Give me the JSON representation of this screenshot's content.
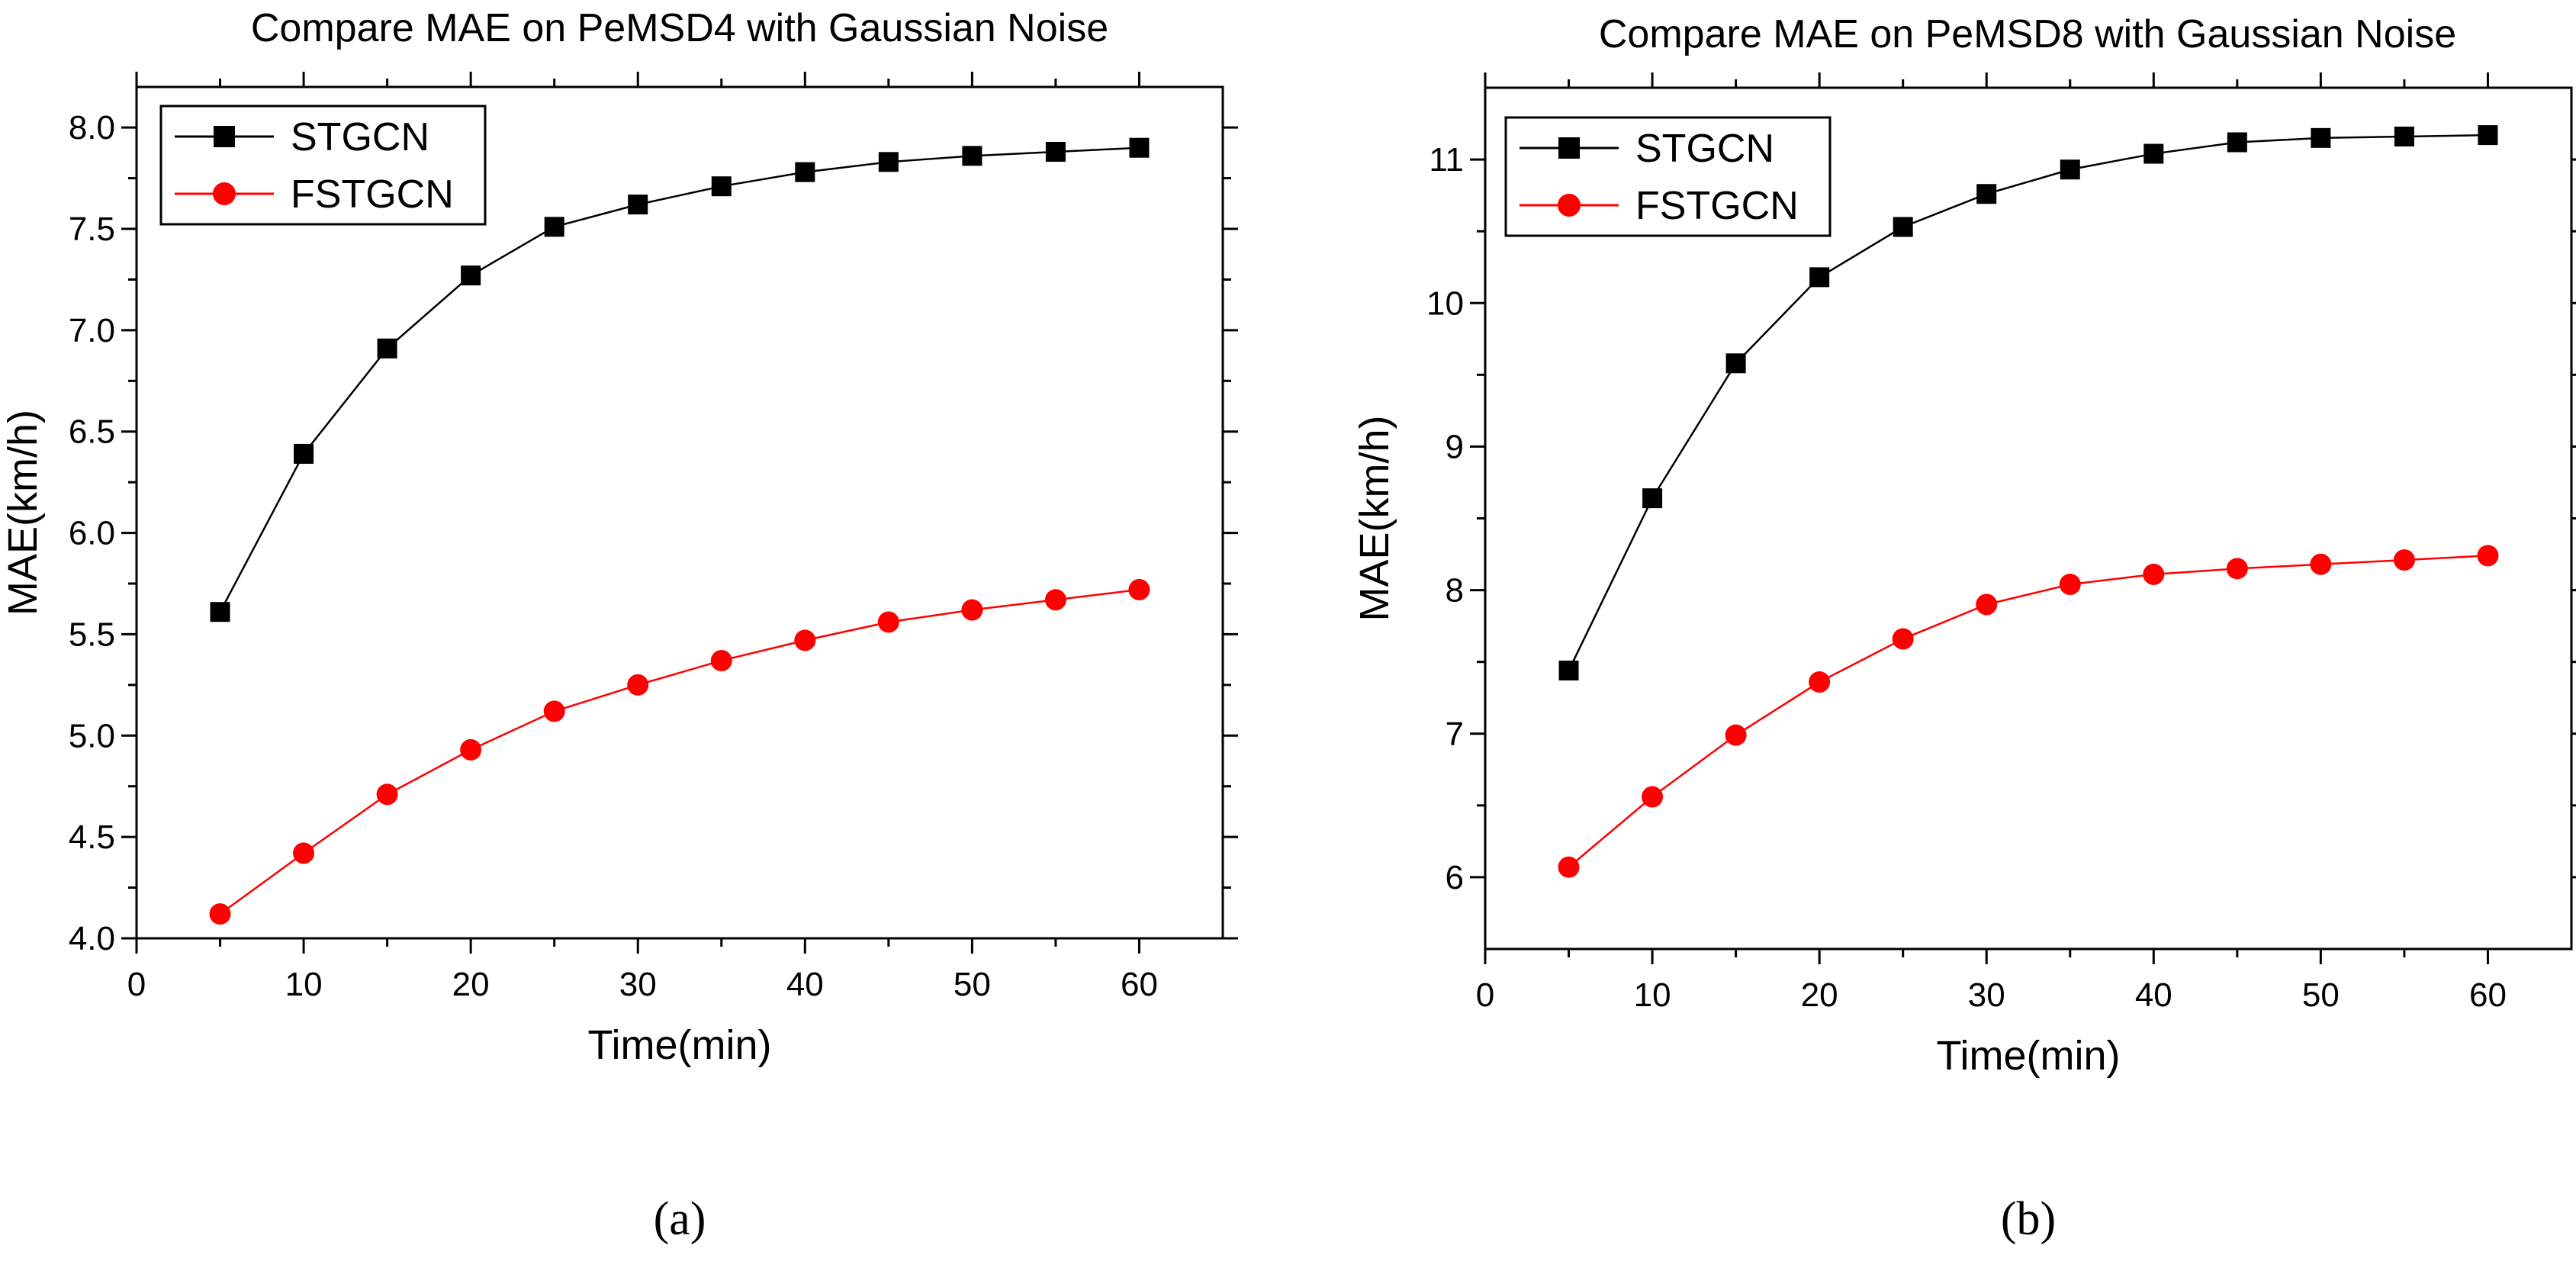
{
  "chart_data": [
    {
      "type": "line",
      "title": "Compare MAE on PeMSD4 with Gaussian Noise",
      "xlabel": "Time(min)",
      "ylabel": "MAE(km/h)",
      "xlim": [
        0,
        65
      ],
      "ylim": [
        4.0,
        8.2
      ],
      "x_ticks": [
        0,
        10,
        20,
        30,
        40,
        50,
        60
      ],
      "y_ticks": [
        4.0,
        4.5,
        5.0,
        5.5,
        6.0,
        6.5,
        7.0,
        7.5,
        8.0
      ],
      "y_tick_decimals": 1,
      "x_minor_step": 5,
      "y_minor_step": 0.25,
      "grid": false,
      "legend_position": "top-left",
      "panel_label": "(a)",
      "x": [
        5,
        10,
        15,
        20,
        25,
        30,
        35,
        40,
        45,
        50,
        55,
        60
      ],
      "series": [
        {
          "name": "STGCN",
          "color": "#000000",
          "marker": "square",
          "values": [
            5.61,
            6.39,
            6.91,
            7.27,
            7.51,
            7.62,
            7.71,
            7.78,
            7.83,
            7.86,
            7.88,
            7.9
          ]
        },
        {
          "name": "FSTGCN",
          "color": "#ff0000",
          "marker": "circle",
          "values": [
            4.12,
            4.42,
            4.71,
            4.93,
            5.12,
            5.25,
            5.37,
            5.47,
            5.56,
            5.62,
            5.67,
            5.72
          ]
        }
      ]
    },
    {
      "type": "line",
      "title": "Compare MAE on PeMSD8 with Gaussian Noise",
      "xlabel": "Time(min)",
      "ylabel": "MAE(km/h)",
      "xlim": [
        0,
        65
      ],
      "ylim": [
        5.5,
        11.5
      ],
      "x_ticks": [
        0,
        10,
        20,
        30,
        40,
        50,
        60
      ],
      "y_ticks": [
        6,
        7,
        8,
        9,
        10,
        11
      ],
      "y_tick_decimals": 0,
      "x_minor_step": 5,
      "y_minor_step": 0.5,
      "grid": false,
      "legend_position": "top-left",
      "panel_label": "(b)",
      "x": [
        5,
        10,
        15,
        20,
        25,
        30,
        35,
        40,
        45,
        50,
        55,
        60
      ],
      "series": [
        {
          "name": "STGCN",
          "color": "#000000",
          "marker": "square",
          "values": [
            7.44,
            8.64,
            9.58,
            10.18,
            10.53,
            10.76,
            10.93,
            11.04,
            11.12,
            11.15,
            11.16,
            11.17
          ]
        },
        {
          "name": "FSTGCN",
          "color": "#ff0000",
          "marker": "circle",
          "values": [
            6.07,
            6.56,
            6.99,
            7.36,
            7.66,
            7.9,
            8.04,
            8.11,
            8.15,
            8.18,
            8.21,
            8.24
          ]
        }
      ]
    }
  ]
}
